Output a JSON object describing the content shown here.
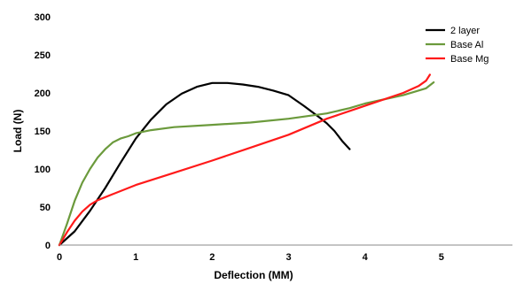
{
  "chart_data": {
    "type": "line",
    "xlabel": "Deflection (MM)",
    "ylabel": "Load (N)",
    "xlim": [
      0,
      6
    ],
    "ylim": [
      0,
      300
    ],
    "x_ticks": [
      "0",
      "1",
      "2",
      "3",
      "4",
      "5"
    ],
    "y_ticks": [
      "0",
      "50",
      "100",
      "150",
      "200",
      "250",
      "300"
    ],
    "grid": false,
    "legend_position": "top-right",
    "series": [
      {
        "name": "2 layer",
        "color": "#000000",
        "points": [
          [
            0,
            0
          ],
          [
            0.2,
            18
          ],
          [
            0.4,
            45
          ],
          [
            0.6,
            75
          ],
          [
            0.8,
            108
          ],
          [
            1.0,
            140
          ],
          [
            1.2,
            165
          ],
          [
            1.4,
            185
          ],
          [
            1.6,
            199
          ],
          [
            1.8,
            208
          ],
          [
            2.0,
            213
          ],
          [
            2.2,
            213
          ],
          [
            2.4,
            211
          ],
          [
            2.6,
            208
          ],
          [
            2.8,
            203
          ],
          [
            3.0,
            197
          ],
          [
            3.2,
            183
          ],
          [
            3.4,
            168
          ],
          [
            3.5,
            160
          ],
          [
            3.6,
            150
          ],
          [
            3.7,
            137
          ],
          [
            3.8,
            126
          ]
        ]
      },
      {
        "name": "Base Al",
        "color": "#6b9a3c",
        "points": [
          [
            0,
            0
          ],
          [
            0.1,
            28
          ],
          [
            0.2,
            58
          ],
          [
            0.3,
            82
          ],
          [
            0.4,
            100
          ],
          [
            0.5,
            115
          ],
          [
            0.6,
            126
          ],
          [
            0.7,
            135
          ],
          [
            0.8,
            140
          ],
          [
            0.9,
            143
          ],
          [
            1.0,
            147
          ],
          [
            1.2,
            151
          ],
          [
            1.5,
            155
          ],
          [
            2.0,
            158
          ],
          [
            2.5,
            161
          ],
          [
            3.0,
            166
          ],
          [
            3.5,
            173
          ],
          [
            3.8,
            180
          ],
          [
            4.0,
            186
          ],
          [
            4.5,
            197
          ],
          [
            4.8,
            206
          ],
          [
            4.9,
            214
          ]
        ]
      },
      {
        "name": "Base Mg",
        "color": "#ff1a1a",
        "points": [
          [
            0,
            0
          ],
          [
            0.1,
            17
          ],
          [
            0.2,
            32
          ],
          [
            0.3,
            44
          ],
          [
            0.4,
            53
          ],
          [
            0.5,
            59
          ],
          [
            0.7,
            67
          ],
          [
            1.0,
            79
          ],
          [
            1.5,
            95
          ],
          [
            2.0,
            111
          ],
          [
            2.5,
            128
          ],
          [
            3.0,
            145
          ],
          [
            3.5,
            166
          ],
          [
            4.0,
            183
          ],
          [
            4.5,
            200
          ],
          [
            4.7,
            209
          ],
          [
            4.8,
            216
          ],
          [
            4.85,
            224
          ]
        ]
      }
    ]
  }
}
